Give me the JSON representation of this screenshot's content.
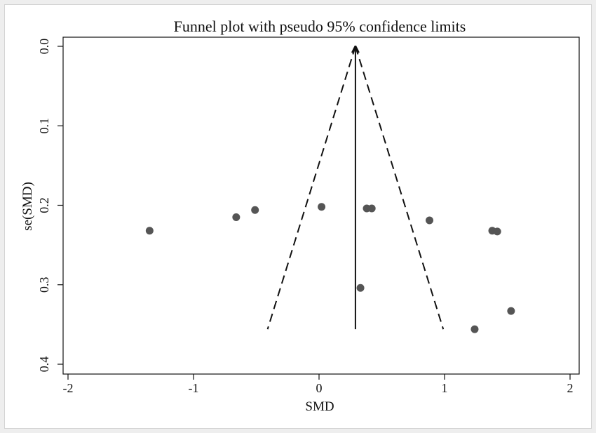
{
  "chart_data": {
    "type": "scatter",
    "title": "Funnel plot with pseudo 95% confidence limits",
    "xlabel": "SMD",
    "ylabel": "se(SMD)",
    "xlim": [
      -2,
      2
    ],
    "ylim": [
      0,
      0.4
    ],
    "y_reversed": true,
    "x_ticks": [
      -2,
      -1,
      0,
      1,
      2
    ],
    "x_tick_labels": [
      "-2",
      "-1",
      "0",
      "1",
      "2"
    ],
    "y_ticks": [
      0,
      0.1,
      0.2,
      0.3,
      0.4
    ],
    "y_tick_labels": [
      "0.0",
      "0.1",
      "0.2",
      "0.3",
      "0.4"
    ],
    "grid": false,
    "legend": false,
    "points": [
      {
        "x": -1.35,
        "y": 0.232
      },
      {
        "x": -0.66,
        "y": 0.215
      },
      {
        "x": -0.51,
        "y": 0.206
      },
      {
        "x": 0.02,
        "y": 0.202
      },
      {
        "x": 0.38,
        "y": 0.204
      },
      {
        "x": 0.42,
        "y": 0.204
      },
      {
        "x": 0.33,
        "y": 0.304
      },
      {
        "x": 0.88,
        "y": 0.219
      },
      {
        "x": 1.38,
        "y": 0.232
      },
      {
        "x": 1.42,
        "y": 0.233
      },
      {
        "x": 1.53,
        "y": 0.333
      },
      {
        "x": 1.24,
        "y": 0.356
      }
    ],
    "pooled_estimate": 0.29,
    "funnel": {
      "apex": {
        "x": 0.29,
        "y": 0
      },
      "max_se": 0.356,
      "left_base_x": -0.41,
      "right_base_x": 0.99,
      "style": "dashed"
    },
    "pooled_line": {
      "x": 0.29,
      "y_from": 0,
      "y_to": 0.356,
      "arrow_at_top": true
    },
    "colors": {
      "points": "#555555",
      "lines": "#111111",
      "background": "#ffffff"
    }
  }
}
